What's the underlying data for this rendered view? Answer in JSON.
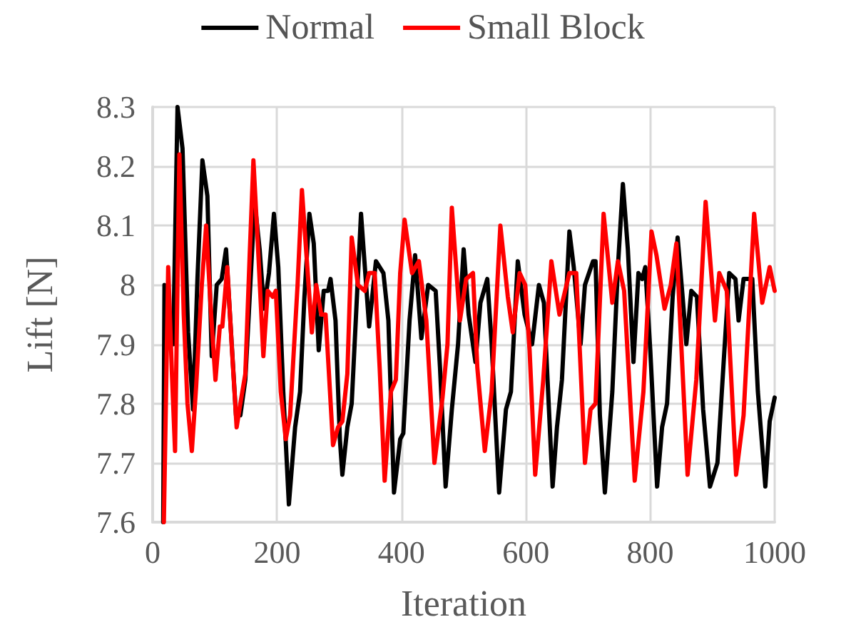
{
  "chart_data": {
    "type": "line",
    "xlabel": "Iteration",
    "ylabel": "Lift [N]",
    "xlim": [
      0,
      1000
    ],
    "xticks": [
      0,
      200,
      400,
      600,
      800,
      1000
    ],
    "ylim": [
      7.6,
      8.3
    ],
    "yticks": [
      7.6,
      7.7,
      7.8,
      7.9,
      8,
      8.1,
      8.2,
      8.3
    ],
    "grid": true,
    "legend": "top",
    "marker": "none",
    "line_style": "solid",
    "series": [
      {
        "name": "Normal",
        "color": "#000000",
        "x": [
          17,
          19,
          33,
          40,
          48,
          57,
          65,
          72,
          80,
          88,
          95,
          103,
          111,
          118,
          126,
          134,
          141,
          149,
          156,
          164,
          172,
          179,
          187,
          195,
          202,
          210,
          219,
          229,
          237,
          244,
          252,
          259,
          267,
          275,
          282,
          286,
          294,
          301,
          305,
          313,
          320,
          335,
          348,
          359,
          371,
          379,
          388,
          398,
          403,
          413,
          422,
          432,
          443,
          455,
          462,
          471,
          481,
          491,
          500,
          508,
          519,
          527,
          538,
          545,
          557,
          568,
          576,
          587,
          598,
          610,
          621,
          629,
          643,
          650,
          658,
          670,
          677,
          688,
          695,
          708,
          712,
          719,
          727,
          739,
          748,
          756,
          764,
          773,
          781,
          787,
          792,
          800,
          811,
          819,
          827,
          836,
          844,
          852,
          858,
          866,
          875,
          885,
          896,
          908,
          918,
          927,
          937,
          942,
          950,
          964,
          973,
          985,
          992,
          1000
        ],
        "values": [
          7.6,
          8.0,
          7.9,
          8.3,
          8.23,
          7.92,
          7.79,
          8.01,
          8.21,
          8.15,
          7.88,
          8.0,
          8.01,
          8.06,
          7.92,
          7.78,
          7.78,
          7.84,
          7.98,
          8.14,
          8.06,
          7.96,
          8.02,
          8.12,
          8.03,
          7.82,
          7.63,
          7.76,
          7.82,
          7.98,
          8.12,
          8.07,
          7.89,
          7.99,
          7.99,
          8.01,
          7.94,
          7.74,
          7.68,
          7.76,
          7.8,
          8.12,
          7.93,
          8.04,
          8.02,
          7.94,
          7.65,
          7.74,
          7.75,
          7.94,
          8.05,
          7.91,
          8.0,
          7.99,
          7.86,
          7.66,
          7.79,
          7.9,
          8.06,
          7.95,
          7.87,
          7.97,
          8.01,
          7.9,
          7.65,
          7.79,
          7.82,
          8.04,
          7.95,
          7.9,
          8.0,
          7.97,
          7.66,
          7.76,
          7.84,
          8.09,
          8.03,
          7.9,
          8.0,
          8.04,
          8.04,
          7.78,
          7.65,
          7.82,
          8.03,
          8.17,
          8.06,
          7.87,
          8.02,
          8.01,
          8.03,
          7.89,
          7.66,
          7.76,
          7.8,
          7.98,
          8.08,
          7.98,
          7.9,
          7.99,
          7.98,
          7.79,
          7.66,
          7.7,
          7.87,
          8.02,
          8.01,
          7.94,
          8.01,
          8.01,
          7.82,
          7.66,
          7.77,
          7.81
        ]
      },
      {
        "name": "Small Block",
        "color": "#ff0000",
        "x": [
          18,
          25,
          31,
          36,
          43,
          50,
          56,
          63,
          70,
          79,
          86,
          94,
          101,
          108,
          112,
          120,
          127,
          135,
          141,
          149,
          156,
          162,
          170,
          178,
          185,
          193,
          198,
          206,
          214,
          221,
          233,
          240,
          248,
          256,
          263,
          271,
          278,
          290,
          298,
          305,
          313,
          320,
          330,
          341,
          348,
          357,
          365,
          373,
          383,
          391,
          398,
          405,
          417,
          428,
          440,
          453,
          466,
          474,
          481,
          494,
          504,
          515,
          522,
          534,
          545,
          559,
          571,
          579,
          590,
          599,
          606,
          615,
          628,
          641,
          654,
          670,
          681,
          695,
          704,
          712,
          725,
          739,
          748,
          758,
          775,
          789,
          802,
          810,
          823,
          833,
          842,
          860,
          874,
          889,
          904,
          911,
          923,
          938,
          950,
          967,
          980,
          992,
          1000
        ],
        "values": [
          7.6,
          8.03,
          7.85,
          7.72,
          8.22,
          7.95,
          7.8,
          7.72,
          7.83,
          8.0,
          8.1,
          7.95,
          7.84,
          7.93,
          7.93,
          8.03,
          7.9,
          7.76,
          7.8,
          7.85,
          8.05,
          8.21,
          8.05,
          7.88,
          7.99,
          7.98,
          7.99,
          7.82,
          7.74,
          7.78,
          8.0,
          8.16,
          8.04,
          7.92,
          8.0,
          7.95,
          7.95,
          7.73,
          7.76,
          7.77,
          7.85,
          8.08,
          8.0,
          7.99,
          8.02,
          8.02,
          7.86,
          7.67,
          7.82,
          7.84,
          8.02,
          8.11,
          8.02,
          8.04,
          7.94,
          7.7,
          7.81,
          7.9,
          8.13,
          7.94,
          8.01,
          8.02,
          7.86,
          7.72,
          7.82,
          8.1,
          7.98,
          7.92,
          8.02,
          8.0,
          7.89,
          7.68,
          7.84,
          8.04,
          7.95,
          8.02,
          8.02,
          7.7,
          7.79,
          7.8,
          8.12,
          7.97,
          8.04,
          7.99,
          7.67,
          7.82,
          8.09,
          8.05,
          7.96,
          8.0,
          8.07,
          7.68,
          7.84,
          8.14,
          7.94,
          8.02,
          7.99,
          7.68,
          7.78,
          8.12,
          7.97,
          8.03,
          7.99
        ]
      }
    ]
  }
}
